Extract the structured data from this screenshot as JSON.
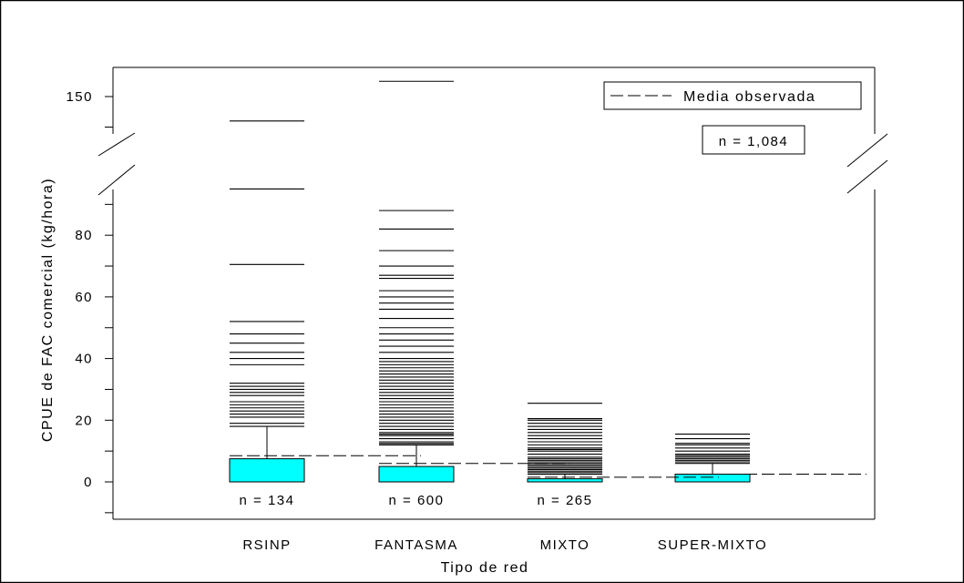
{
  "chart_data": {
    "type": "box",
    "xlabel": "Tipo de red",
    "ylabel": "CPUE de FAC comercial (kg/hora)",
    "ylim": [
      -12,
      158
    ],
    "axis_break": {
      "from": 98,
      "to": 130,
      "tick_at_break_top": 140
    },
    "yticks_labeled": [
      0,
      20,
      40,
      60,
      80,
      150
    ],
    "yticks_minor": [
      -10,
      10,
      30,
      50,
      70,
      90,
      140
    ],
    "categories": [
      "RSINP",
      "FANTASMA",
      "MIXTO",
      "SUPER-MIXTO"
    ],
    "legend": {
      "label": "Media observada",
      "placement": "top-right"
    },
    "total_n_label": "n = 1,084",
    "groups": [
      {
        "name": "RSINP",
        "n_label": "n = 134",
        "q1": 0,
        "median": 0,
        "q3": 7.5,
        "whisker_low": 0,
        "whisker_high": 18,
        "mean": 8.5,
        "outliers": [
          19,
          21,
          22,
          23,
          24,
          25,
          26,
          28,
          29,
          30,
          31,
          32,
          38,
          40,
          42,
          45,
          48,
          52,
          70.5,
          95,
          142
        ]
      },
      {
        "name": "FANTASMA",
        "n_label": "n = 600",
        "q1": 0,
        "median": 0,
        "q3": 5,
        "whisker_low": 0,
        "whisker_high": 12,
        "mean": 6,
        "outliers": [
          12.5,
          13,
          14,
          15,
          15.5,
          16,
          17,
          18,
          19,
          20,
          21,
          22,
          23,
          24,
          25,
          26,
          27,
          28,
          29,
          30,
          31,
          32,
          33,
          34,
          35,
          36,
          37,
          38,
          39,
          40,
          42,
          44,
          46,
          48,
          50,
          53,
          56,
          58,
          60,
          62,
          66,
          67,
          70,
          75,
          82,
          88,
          155
        ]
      },
      {
        "name": "MIXTO",
        "n_label": "n = 265",
        "q1": 0,
        "median": 0,
        "q3": 1,
        "whisker_low": 0,
        "whisker_high": 2.5,
        "mean": 1.5,
        "outliers": [
          3,
          3.5,
          4,
          4.5,
          5,
          5.5,
          6,
          6.5,
          7,
          7.5,
          8,
          9,
          10,
          10.5,
          11,
          12,
          13,
          14,
          15,
          16,
          17,
          18,
          19,
          20,
          20.5,
          25.5
        ]
      },
      {
        "name": "SUPER-MIXTO",
        "n_label": "",
        "q1": 0,
        "median": 0,
        "q3": 2.5,
        "whisker_low": 0,
        "whisker_high": 6,
        "mean": 2.5,
        "outliers": [
          6.5,
          7,
          7.5,
          8,
          8.5,
          9,
          10,
          11,
          12,
          12.5,
          14,
          15.5
        ]
      }
    ]
  }
}
